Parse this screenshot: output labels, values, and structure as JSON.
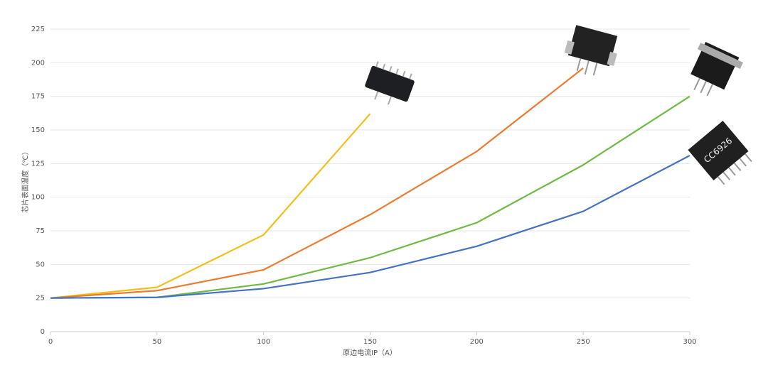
{
  "chart_data": {
    "type": "line",
    "x_label": "原边电流IP（A）",
    "y_label": "芯片表面温度（℃）",
    "x": [
      0,
      50,
      100,
      150,
      200,
      250,
      300
    ],
    "series": [
      {
        "color": "#f2be1a",
        "values": [
          25,
          33,
          72,
          162,
          null,
          null,
          null
        ]
      },
      {
        "color": "#ec7b31",
        "values": [
          25,
          30.5,
          46,
          87,
          134,
          196,
          null
        ]
      },
      {
        "color": "#70b944",
        "values": [
          25,
          25.5,
          35.5,
          55,
          81,
          124,
          175
        ]
      },
      {
        "color": "#4472c4",
        "values": [
          25,
          25.5,
          32,
          44,
          63.5,
          89.5,
          131
        ]
      }
    ],
    "xlim": [
      0,
      300
    ],
    "xticks": [
      0,
      50,
      100,
      150,
      200,
      250,
      300
    ],
    "ylim": [
      0,
      225
    ],
    "yticks": [
      0,
      25,
      50,
      75,
      100,
      125,
      150,
      175,
      200,
      225
    ],
    "grid": true,
    "annotations": [
      "CC6926"
    ]
  }
}
